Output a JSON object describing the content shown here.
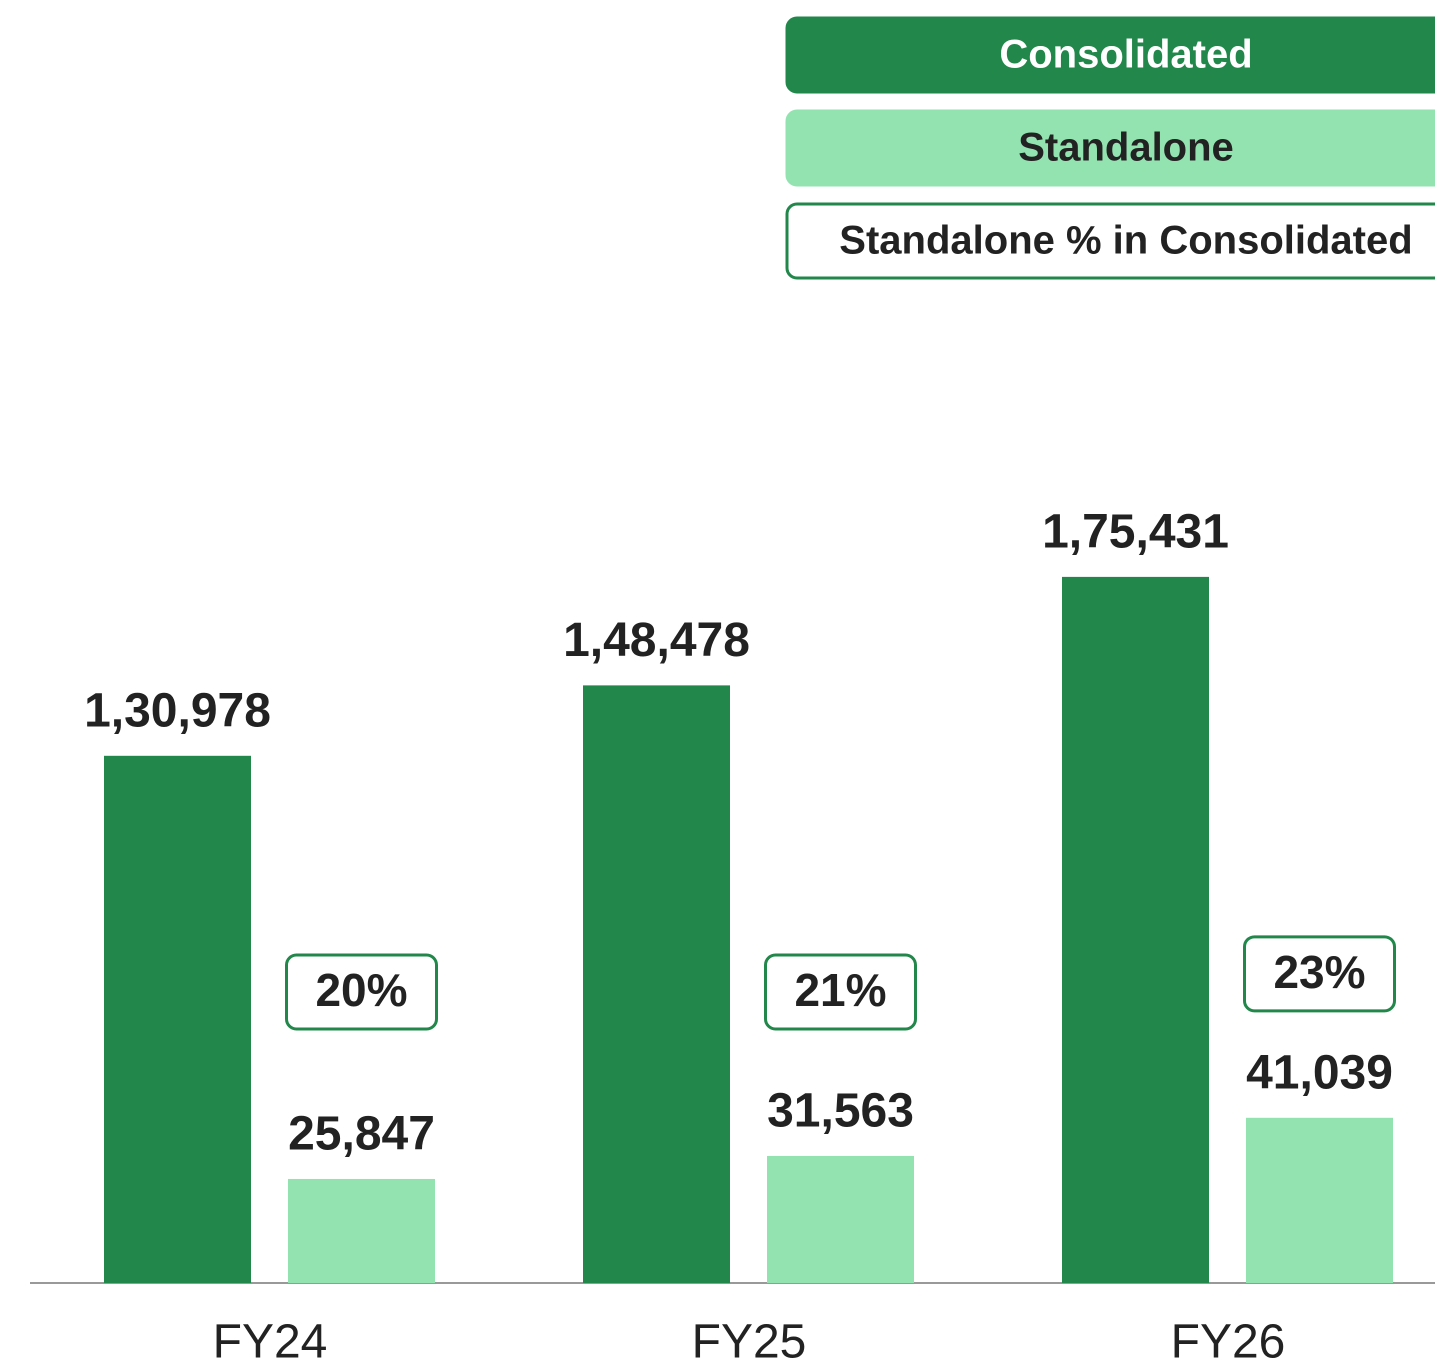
{
  "chart_data": {
    "type": "bar",
    "categories": [
      "FY24",
      "FY25",
      "FY26"
    ],
    "series": [
      {
        "name": "Consolidated",
        "color": "#22874a",
        "values": [
          130978,
          148478,
          175431
        ],
        "value_labels": [
          "1,30,978",
          "1,48,478",
          "1,75,431"
        ]
      },
      {
        "name": "Standalone",
        "color": "#93e3b0",
        "values": [
          25847,
          31563,
          41039
        ],
        "value_labels": [
          "25,847",
          "31,563",
          "41,039"
        ]
      },
      {
        "name": "Standalone % in Consolidated",
        "color": "#ffffff",
        "edge_color": "#22874a",
        "values": [
          20,
          21,
          23
        ],
        "value_labels": [
          "20%",
          "21%",
          "23%"
        ]
      }
    ],
    "ylim": [
      0,
      200000
    ],
    "legend": "top-right",
    "grid": false
  }
}
